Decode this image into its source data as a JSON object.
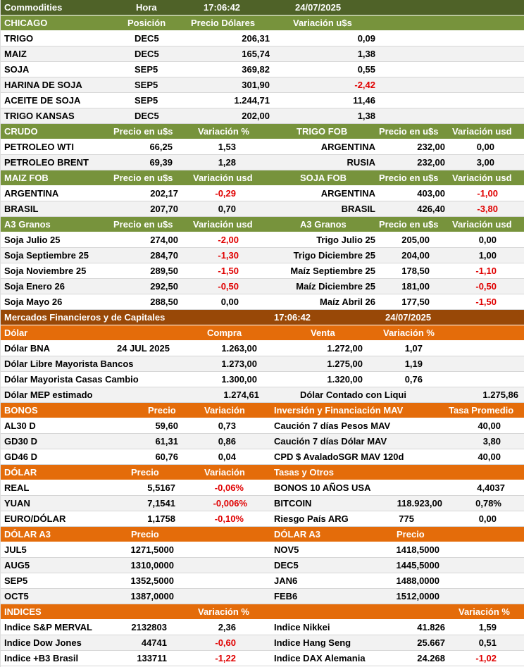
{
  "colors": {
    "green": "#77933c",
    "dark_green": "#4f6228",
    "brown": "#984807",
    "orange": "#e46c0a",
    "negative": "#e00000"
  },
  "header": {
    "title": "Commodities",
    "time_label": "Hora",
    "time": "17:06:42",
    "date": "24/07/2025"
  },
  "chicago": {
    "h": [
      "CHICAGO",
      "Posición",
      "Precio Dólares",
      "Variación u$s"
    ],
    "rows": [
      [
        "TRIGO",
        "DEC5",
        "206,31",
        "0,09"
      ],
      [
        "MAIZ",
        "DEC5",
        "165,74",
        "1,38"
      ],
      [
        "SOJA",
        "SEP5",
        "369,82",
        "0,55"
      ],
      [
        "HARINA DE SOJA",
        "SEP5",
        "301,90",
        "-2,42"
      ],
      [
        "ACEITE DE SOJA",
        "SEP5",
        "1.244,71",
        "11,46"
      ],
      [
        "TRIGO KANSAS",
        "DEC5",
        "202,00",
        "1,38"
      ]
    ]
  },
  "crudo": {
    "h": [
      "CRUDO",
      "Precio en u$s",
      "Variación %",
      "TRIGO FOB",
      "Precio en u$s",
      "Variación usd"
    ],
    "rows": [
      [
        "PETROLEO WTI",
        "66,25",
        "1,53",
        "ARGENTINA",
        "232,00",
        "0,00"
      ],
      [
        "PETROLEO BRENT",
        "69,39",
        "1,28",
        "RUSIA",
        "232,00",
        "3,00"
      ]
    ]
  },
  "maiz_fob": {
    "h": [
      "MAIZ FOB",
      "Precio en u$s",
      "Variación usd",
      "SOJA FOB",
      "Precio en u$s",
      "Variación usd"
    ],
    "rows": [
      [
        "ARGENTINA",
        "202,17",
        "-0,29",
        "ARGENTINA",
        "403,00",
        "-1,00"
      ],
      [
        "BRASIL",
        "207,70",
        "0,70",
        "BRASIL",
        "426,40",
        "-3,80"
      ]
    ]
  },
  "a3_granos": {
    "h": [
      "A3 Granos",
      "Precio en u$s",
      "Variación usd",
      "A3 Granos",
      "Precio en u$s",
      "Variación usd"
    ],
    "rows": [
      [
        "Soja Julio 25",
        "274,00",
        "-2,00",
        "Trigo Julio 25",
        "205,00",
        "0,00"
      ],
      [
        "Soja Septiembre 25",
        "284,70",
        "-1,30",
        "Trigo Diciembre 25",
        "204,00",
        "1,00"
      ],
      [
        "Soja Noviembre 25",
        "289,50",
        "-1,50",
        "Maíz Septiembre 25",
        "178,50",
        "-1,10"
      ],
      [
        "Soja Enero 26",
        "292,50",
        "-0,50",
        "Maíz Diciembre 25",
        "181,00",
        "-0,50"
      ],
      [
        "Soja Mayo 26",
        "288,50",
        "0,00",
        "Maíz Abril 26",
        "177,50",
        "-1,50"
      ]
    ]
  },
  "mercados": {
    "title": "Mercados Financieros y de Capitales",
    "time": "17:06:42",
    "date": "24/07/2025"
  },
  "dolar": {
    "h": [
      "Dólar",
      "Compra",
      "Venta",
      "Variación %"
    ],
    "rows": [
      [
        "Dólar BNA",
        "24 JUL 2025",
        "1.263,00",
        "1.272,00",
        "1,07"
      ],
      [
        "Dólar Libre Mayorista Bancos",
        "",
        "1.273,00",
        "1.275,00",
        "1,19"
      ],
      [
        "Dólar Mayorista Casas Cambio",
        "",
        "1.300,00",
        "1.320,00",
        "0,76"
      ]
    ],
    "mep": [
      "Dólar MEP estimado",
      "1.274,61",
      "Dólar Contado con Liqui",
      "1.275,86"
    ]
  },
  "bonos": {
    "h": [
      "BONOS",
      "Precio",
      "Variación",
      "Inversión y Financiación MAV",
      "Tasa Promedio"
    ],
    "rows": [
      [
        "AL30 D",
        "59,60",
        "0,73",
        "Caución 7 días Pesos MAV",
        "40,00"
      ],
      [
        "GD30 D",
        "61,31",
        "0,86",
        "Caución 7 días Dólar MAV",
        "3,80"
      ],
      [
        "GD46 D",
        "60,76",
        "0,04",
        "CPD $ AvaladoSGR  MAV 120d",
        "40,00"
      ]
    ]
  },
  "dolar2": {
    "h": [
      "DÓLAR",
      "Precio",
      "Variación",
      "Tasas y Otros"
    ],
    "rows": [
      [
        "REAL",
        "5,5167",
        "-0,06%",
        "BONOS 10 AÑOS USA",
        "",
        "4,4037"
      ],
      [
        "YUAN",
        "7,1541",
        "-0,006%",
        "BITCOIN",
        "118.923,00",
        "0,78%"
      ],
      [
        "EURO/DÓLAR",
        "1,1758",
        "-0,10%",
        "Riesgo País ARG",
        "775",
        "0,00"
      ]
    ]
  },
  "dolar_a3": {
    "h": [
      "DÓLAR A3",
      "Precio",
      "DÓLAR A3",
      "Precio"
    ],
    "rows": [
      [
        "JUL5",
        "1271,5000",
        "NOV5",
        "1418,5000"
      ],
      [
        "AUG5",
        "1310,0000",
        "DEC5",
        "1445,5000"
      ],
      [
        "SEP5",
        "1352,5000",
        "JAN6",
        "1488,0000"
      ],
      [
        "OCT5",
        "1387,0000",
        "FEB6",
        "1512,0000"
      ]
    ]
  },
  "indices": {
    "h": [
      "INDICES",
      "Variación %",
      "Variación %"
    ],
    "rows": [
      [
        "Indice S&P MERVAL",
        "2132803",
        "2,36",
        "Indice Nikkei",
        "41.826",
        "1,59"
      ],
      [
        "Indice Dow Jones",
        "44741",
        "-0,60",
        "Indice Hang Seng",
        "25.667",
        "0,51"
      ],
      [
        "Indice +B3 Brasil",
        "133711",
        "-1,22",
        "Indice DAX Alemania",
        "24.268",
        "-1,02"
      ]
    ]
  }
}
